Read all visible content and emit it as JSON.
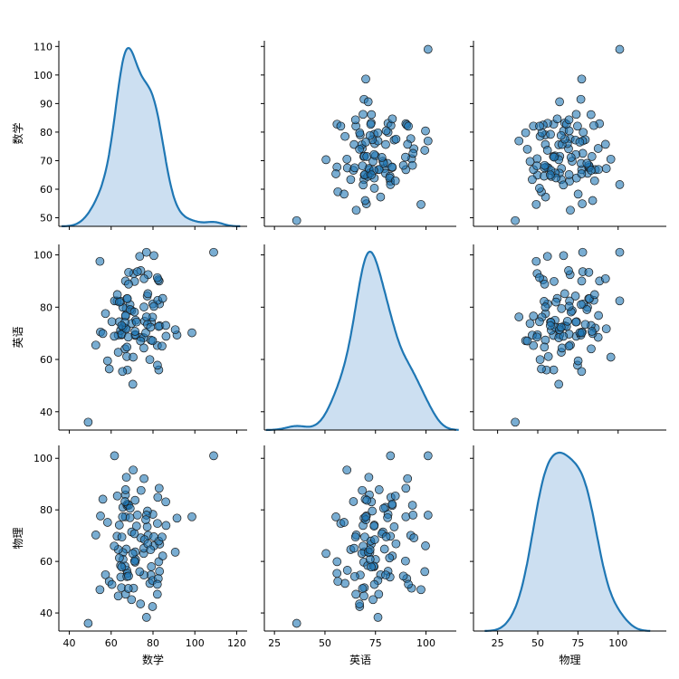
{
  "chart_data": {
    "type": "scatter",
    "subtype": "pairplot",
    "title": "",
    "variables": [
      "数学",
      "英语",
      "物理"
    ],
    "diagonal_kind": "kde",
    "offdiagonal_kind": "scatter",
    "grid": false,
    "colors": {
      "marker_face": "#1f77b4",
      "kde_line": "#1f77b4",
      "kde_fill": "#c6dbef"
    },
    "axes": {
      "数学": {
        "range": [
          35,
          125
        ],
        "ticks": [
          40,
          60,
          80,
          100,
          120
        ],
        "y_range": [
          47,
          112
        ],
        "y_ticks": [
          50,
          60,
          70,
          80,
          90,
          100,
          110
        ]
      },
      "英语": {
        "range": [
          20,
          115
        ],
        "ticks": [
          25,
          50,
          75,
          100
        ],
        "y_range": [
          33,
          104
        ],
        "y_ticks": [
          40,
          60,
          80,
          100
        ]
      },
      "物理": {
        "range": [
          10,
          130
        ],
        "ticks": [
          25,
          50,
          75,
          100
        ],
        "y_range": [
          33,
          105
        ],
        "y_ticks": [
          40,
          60,
          80,
          100
        ]
      }
    },
    "approximate_summary": {
      "n_points": 100,
      "数学": {
        "mean": 72,
        "sd": 10,
        "min": 49,
        "max": 109
      },
      "英语": {
        "mean": 75,
        "sd": 12,
        "min": 36,
        "max": 101
      },
      "物理": {
        "mean": 70,
        "sd": 15,
        "min": 36,
        "max": 101
      }
    }
  }
}
